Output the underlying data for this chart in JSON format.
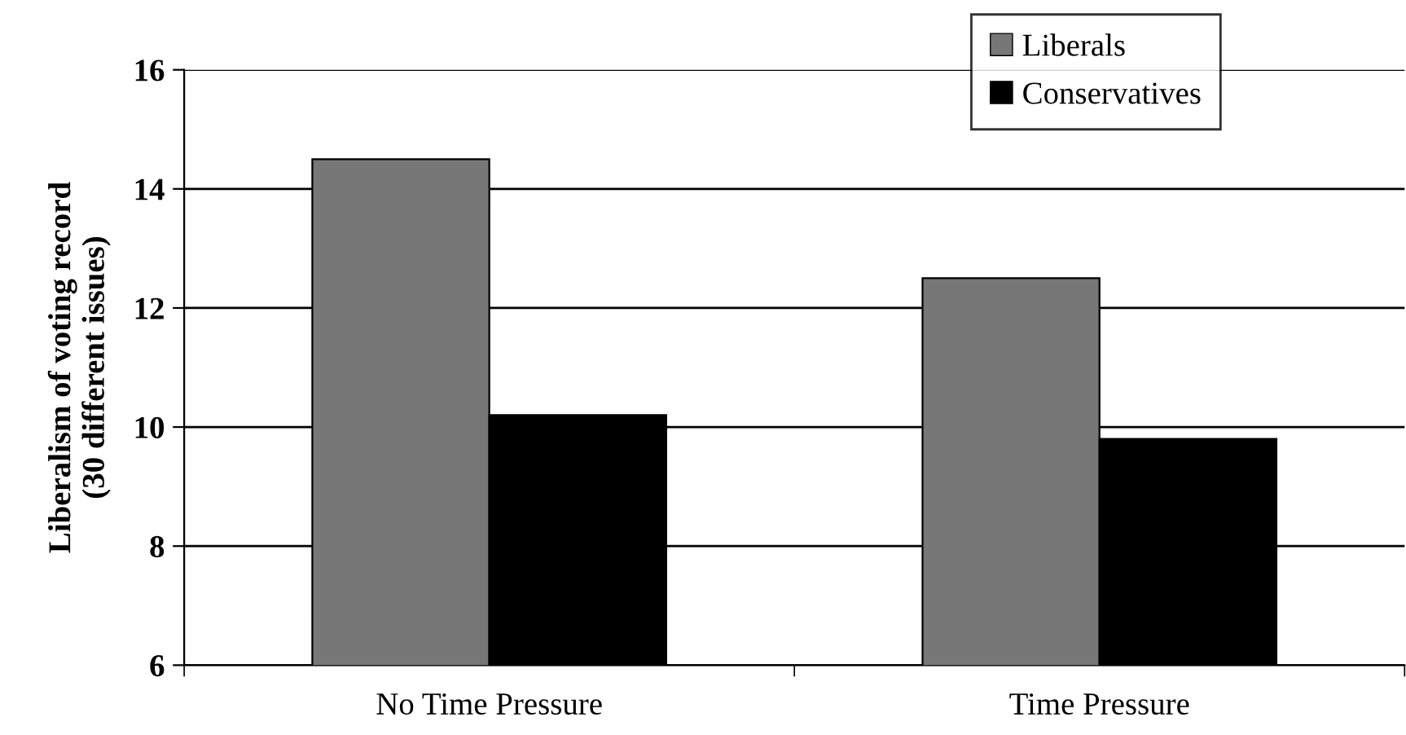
{
  "chart_data": {
    "type": "bar",
    "ylabel": "Liberalism of voting record\n(30 different issues)",
    "categories": [
      "No Time Pressure",
      "Time Pressure"
    ],
    "series": [
      {
        "name": "Liberals",
        "color": "#777777",
        "values": [
          14.5,
          12.5
        ]
      },
      {
        "name": "Conservatives",
        "color": "#000000",
        "values": [
          10.2,
          9.8
        ]
      }
    ],
    "ylim": [
      6,
      16
    ],
    "yticks": [
      6,
      8,
      10,
      12,
      14,
      16
    ],
    "grid": "y",
    "legend": "top right"
  }
}
